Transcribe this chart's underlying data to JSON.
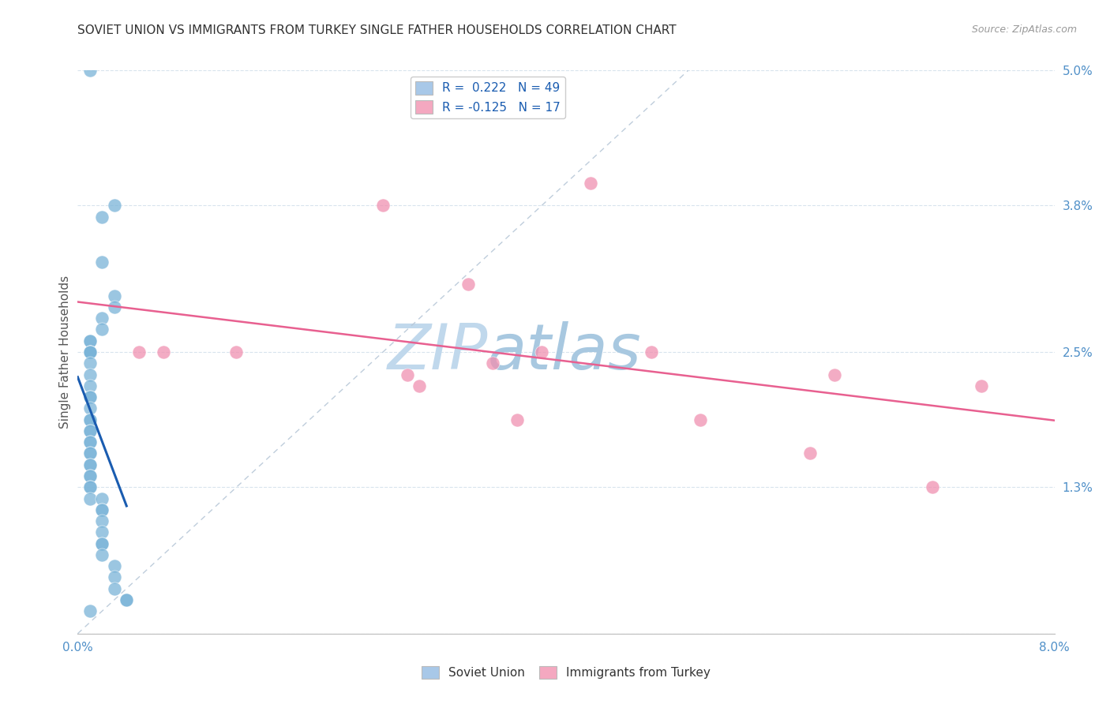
{
  "title": "SOVIET UNION VS IMMIGRANTS FROM TURKEY SINGLE FATHER HOUSEHOLDS CORRELATION CHART",
  "source": "Source: ZipAtlas.com",
  "ylabel": "Single Father Households",
  "x_min": 0.0,
  "x_max": 0.08,
  "y_min": 0.0,
  "y_max": 0.05,
  "x_ticks": [
    0.0,
    0.01,
    0.02,
    0.03,
    0.04,
    0.05,
    0.06,
    0.07,
    0.08
  ],
  "x_tick_labels": [
    "0.0%",
    "",
    "",
    "",
    "",
    "",
    "",
    "",
    "8.0%"
  ],
  "y_ticks": [
    0.0,
    0.013,
    0.025,
    0.038,
    0.05
  ],
  "y_tick_labels_right": [
    "",
    "1.3%",
    "2.5%",
    "3.8%",
    "5.0%"
  ],
  "legend_entries": [
    {
      "label": "R =  0.222   N = 49",
      "color": "#a8c8e8"
    },
    {
      "label": "R = -0.125   N = 17",
      "color": "#f4a8c0"
    }
  ],
  "soviet_union_x": [
    0.001,
    0.003,
    0.002,
    0.002,
    0.003,
    0.003,
    0.002,
    0.002,
    0.001,
    0.001,
    0.001,
    0.001,
    0.001,
    0.001,
    0.001,
    0.001,
    0.001,
    0.001,
    0.001,
    0.001,
    0.001,
    0.001,
    0.001,
    0.001,
    0.001,
    0.001,
    0.001,
    0.001,
    0.001,
    0.001,
    0.001,
    0.001,
    0.001,
    0.001,
    0.001,
    0.002,
    0.002,
    0.002,
    0.002,
    0.002,
    0.002,
    0.002,
    0.002,
    0.003,
    0.003,
    0.003,
    0.004,
    0.004,
    0.001
  ],
  "soviet_union_y": [
    0.05,
    0.038,
    0.037,
    0.033,
    0.03,
    0.029,
    0.028,
    0.027,
    0.026,
    0.026,
    0.025,
    0.025,
    0.025,
    0.025,
    0.024,
    0.023,
    0.022,
    0.021,
    0.021,
    0.02,
    0.019,
    0.019,
    0.018,
    0.018,
    0.017,
    0.017,
    0.016,
    0.016,
    0.015,
    0.015,
    0.014,
    0.014,
    0.013,
    0.013,
    0.012,
    0.012,
    0.011,
    0.011,
    0.01,
    0.009,
    0.008,
    0.008,
    0.007,
    0.006,
    0.005,
    0.004,
    0.003,
    0.003,
    0.002
  ],
  "turkey_x": [
    0.005,
    0.007,
    0.013,
    0.025,
    0.027,
    0.028,
    0.032,
    0.034,
    0.036,
    0.038,
    0.042,
    0.047,
    0.051,
    0.06,
    0.062,
    0.07,
    0.074
  ],
  "turkey_y": [
    0.025,
    0.025,
    0.025,
    0.038,
    0.023,
    0.022,
    0.031,
    0.024,
    0.019,
    0.025,
    0.04,
    0.025,
    0.019,
    0.016,
    0.023,
    0.013,
    0.022
  ],
  "soviet_color": "#7ab4d8",
  "turkey_color": "#f090b0",
  "soviet_line_color": "#1a5cb0",
  "turkey_line_color": "#e86090",
  "diag_line_color": "#b8c8d8",
  "watermark_zip": "ZIP",
  "watermark_atlas": "atlas",
  "watermark_color": "#c8dcea",
  "background_color": "#ffffff",
  "grid_color": "#d8e4ed"
}
